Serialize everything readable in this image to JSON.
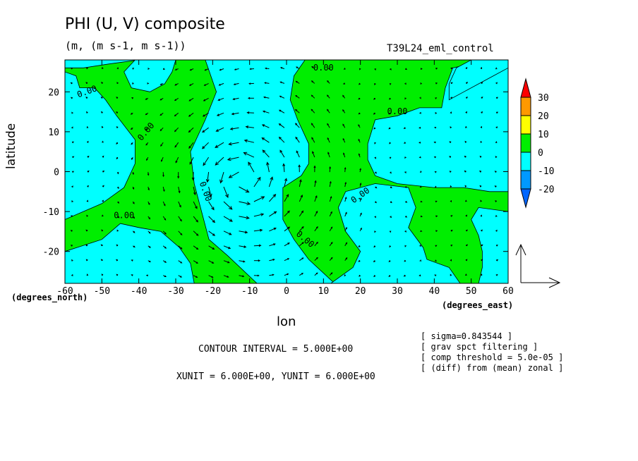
{
  "figure": {
    "title": "PHI (U, V) composite",
    "units": "(m, (m s-1, m s-1))",
    "run_name": "T39L24_eml_control",
    "contour_interval": "CONTOUR INTERVAL = 5.000E+00",
    "vector_units": "XUNIT = 6.000E+00, YUNIT = 6.000E+00",
    "notes": [
      "[ sigma=0.843544 ]",
      "[ grav spct filtering ]",
      "[ comp threshold = 5.0e-05 ]",
      "[ (diff) from (mean) zonal ]"
    ]
  },
  "chart_data": {
    "type": "heatmap",
    "subtype": "filled-contour with wind vectors",
    "title": "PHI (U, V) composite",
    "xlabel": "lon",
    "ylabel": "latitude",
    "x_unit_label": "(degrees_east)",
    "y_unit_label": "(degrees_north)",
    "xlim": [
      -60,
      60
    ],
    "ylim": [
      -28,
      28
    ],
    "x_ticks": [
      -60,
      -50,
      -40,
      -30,
      -20,
      -10,
      0,
      10,
      20,
      30,
      40,
      50,
      60
    ],
    "y_ticks": [
      -20,
      -10,
      0,
      10,
      20
    ],
    "contour_labels": [
      "0.00"
    ],
    "colorbar": {
      "levels": [
        "30",
        "20",
        "10",
        "0",
        "-10",
        "-20"
      ],
      "colors": [
        "#ff0000",
        "#ff9900",
        "#ffff00",
        "#00ee00",
        "#00ffff",
        "#0099ff",
        "#0066ff"
      ]
    },
    "regions": [
      {
        "sign": "negative",
        "color": "#00ffff",
        "description": "west band",
        "outline": [
          [
            -60,
            -28
          ],
          [
            -60,
            -12
          ],
          [
            -50,
            -8
          ],
          [
            -44,
            -4
          ],
          [
            -41,
            2
          ],
          [
            -41,
            8
          ],
          [
            -46,
            14
          ],
          [
            -49,
            18
          ],
          [
            -52,
            21
          ],
          [
            -56,
            21
          ],
          [
            -57,
            24
          ],
          [
            -60,
            25
          ]
        ]
      },
      {
        "sign": "negative",
        "color": "#00ffff",
        "description": "northwest strip",
        "outline": [
          [
            -60,
            28
          ],
          [
            -60,
            26
          ],
          [
            -55,
            26
          ],
          [
            -48,
            27
          ],
          [
            -40,
            28
          ]
        ]
      },
      {
        "sign": "negative",
        "color": "#00ffff",
        "description": "southwest tongue",
        "outline": [
          [
            -60,
            -28
          ],
          [
            -60,
            -20
          ],
          [
            -50,
            -17
          ],
          [
            -45,
            -13
          ],
          [
            -40,
            -14
          ],
          [
            -34,
            -15
          ],
          [
            -29,
            -19
          ],
          [
            -26,
            -23
          ],
          [
            -25,
            -28
          ]
        ]
      },
      {
        "sign": "negative",
        "color": "#00ffff",
        "description": "northwest lobe",
        "outline": [
          [
            -41,
            28
          ],
          [
            -44,
            25
          ],
          [
            -42,
            21
          ],
          [
            -37,
            20
          ],
          [
            -33,
            22
          ],
          [
            -31,
            25
          ],
          [
            -30,
            28
          ]
        ]
      },
      {
        "sign": "negative",
        "color": "#00ffff",
        "description": "central low",
        "outline": [
          [
            -22,
            28
          ],
          [
            -19,
            20
          ],
          [
            -22,
            13
          ],
          [
            -26,
            5
          ],
          [
            -25,
            -3
          ],
          [
            -23,
            -10
          ],
          [
            -21,
            -17
          ],
          [
            -16,
            -21
          ],
          [
            -8,
            -28
          ],
          [
            13,
            -28
          ],
          [
            6,
            -22
          ],
          [
            2,
            -17
          ],
          [
            -1,
            -12
          ],
          [
            -1,
            -4
          ],
          [
            4,
            -1
          ],
          [
            6,
            2
          ],
          [
            6,
            7
          ],
          [
            3,
            13
          ],
          [
            1,
            18
          ],
          [
            2,
            24
          ],
          [
            5,
            28
          ]
        ]
      },
      {
        "sign": "negative",
        "color": "#00ffff",
        "description": "southern central",
        "outline": [
          [
            12,
            -28
          ],
          [
            18,
            -24
          ],
          [
            20,
            -20
          ],
          [
            16,
            -15
          ],
          [
            14,
            -9
          ],
          [
            16,
            -5
          ],
          [
            24,
            -3
          ],
          [
            33,
            -4
          ],
          [
            35,
            -9
          ],
          [
            33,
            -14
          ],
          [
            37,
            -19
          ],
          [
            38,
            -22
          ],
          [
            44,
            -24
          ],
          [
            47,
            -28
          ]
        ]
      },
      {
        "sign": "negative",
        "color": "#00ffff",
        "description": "east low",
        "outline": [
          [
            60,
            26
          ],
          [
            50,
            27
          ],
          [
            45,
            26
          ],
          [
            43,
            21
          ],
          [
            42,
            16
          ],
          [
            36,
            16
          ],
          [
            30,
            14
          ],
          [
            24,
            13
          ],
          [
            22,
            7
          ],
          [
            22,
            3
          ],
          [
            24,
            -1
          ],
          [
            30,
            -3
          ],
          [
            40,
            -4
          ],
          [
            48,
            -4
          ],
          [
            55,
            -5
          ],
          [
            60,
            -5
          ]
        ]
      },
      {
        "sign": "negative",
        "color": "#00ffff",
        "description": "southeast strip",
        "outline": [
          [
            60,
            -10
          ],
          [
            52,
            -9
          ],
          [
            50,
            -12
          ],
          [
            52,
            -16
          ],
          [
            53,
            -20
          ],
          [
            53,
            -24
          ],
          [
            52,
            -28
          ],
          [
            60,
            -28
          ]
        ]
      },
      {
        "sign": "negative",
        "color": "#00ffff",
        "description": "northeast corner",
        "outline": [
          [
            60,
            26
          ],
          [
            56,
            24
          ],
          [
            48,
            20
          ],
          [
            44,
            18
          ],
          [
            44,
            22
          ],
          [
            46,
            26
          ],
          [
            50,
            28
          ],
          [
            60,
            28
          ]
        ]
      }
    ]
  }
}
